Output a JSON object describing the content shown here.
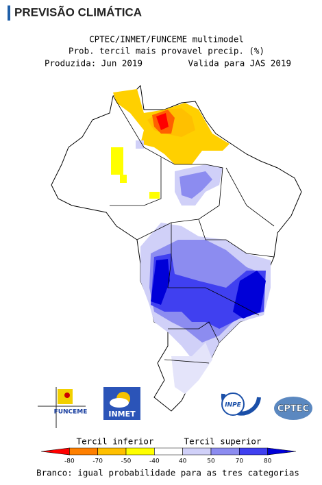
{
  "header": {
    "title": "PREVISÃO CLIMÁTICA"
  },
  "map": {
    "title_lines": [
      "CPTEC/INMET/FUNCEME multimodel",
      "Prob. tercil mais provavel precip. (%)"
    ],
    "produced": "Produzida: Jun 2019",
    "valid": "Valida para JAS 2019"
  },
  "logos": {
    "funceme": "FUNCEME",
    "inmet": "INMET",
    "inpe": "INPE",
    "cptec": "CPTEC"
  },
  "legend": {
    "lower_label": "Tercil inferior",
    "upper_label": "Tercil superior",
    "ticks": [
      -80,
      -70,
      -50,
      -40,
      40,
      50,
      70,
      80
    ],
    "colors": [
      "#ff0000",
      "#ff8000",
      "#ffc000",
      "#ffff00",
      "#ffffff",
      "#d0d0f8",
      "#8c8cf0",
      "#4040f0",
      "#0000d8"
    ],
    "note": "Branco: igual probabilidade para as tres categorias"
  }
}
